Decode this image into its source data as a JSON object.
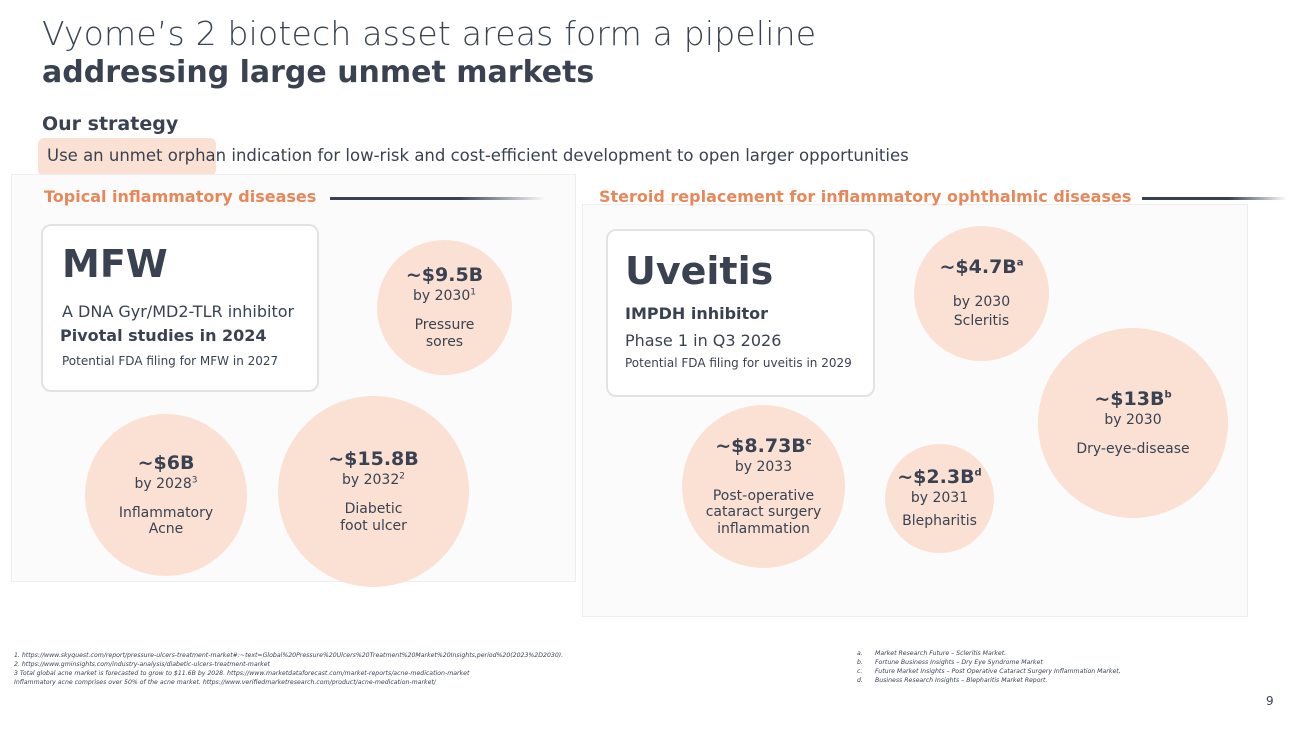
{
  "title": {
    "line1": "Vyome’s 2 biotech asset areas form a pipeline",
    "line2": "addressing large unmet markets"
  },
  "strategy": {
    "heading": "Our strategy",
    "text": "Use an unmet orphan indication for low-risk and cost-efficient development to open larger opportunities"
  },
  "left_section": {
    "heading": "Topical inflammatory diseases",
    "card": {
      "title": "MFW",
      "line1": "A DNA Gyr/MD2-TLR inhibitor",
      "line2": "Pivotal studies in 2024",
      "line3": "Potential FDA filing for MFW in 2027"
    },
    "bubbles": [
      {
        "value": "~$9.5B",
        "year": "by 2030",
        "ref": "1",
        "label1": "Pressure",
        "label2": "sores"
      },
      {
        "value": "~$6B",
        "year": "by 2028",
        "ref": "3",
        "label1": "Inflammatory",
        "label2": "Acne"
      },
      {
        "value": "~$15.8B",
        "year": "by 2032",
        "ref": "2",
        "label1": "Diabetic",
        "label2": "foot ulcer"
      }
    ]
  },
  "right_section": {
    "heading": "Steroid replacement for inflammatory ophthalmic diseases",
    "card": {
      "title": "Uveitis",
      "line1": "IMPDH inhibitor",
      "line2": "Phase 1 in Q3 2026",
      "line3": "Potential FDA filing for uveitis in 2029"
    },
    "bubbles": [
      {
        "value": "~$4.7B",
        "ref": "a",
        "year": "by 2030",
        "label1": "Scleritis",
        "label2": ""
      },
      {
        "value": "~$13B",
        "ref": "b",
        "year": "by 2030",
        "label1": "Dry-eye-disease",
        "label2": ""
      },
      {
        "value": "~$8.73B",
        "ref": "c",
        "year": "by 2033",
        "label1": "Post-operative",
        "label2": "cataract surgery",
        "label3": "inflammation"
      },
      {
        "value": "~$2.3B",
        "ref": "d",
        "year": "by 2031",
        "label1": "Blepharitis",
        "label2": ""
      }
    ]
  },
  "footnotes_left": [
    "1. https://www.skyquest.com/report/pressure-ulcers-treatment-market#:~text=Global%20Pressure%20Ulcers%20Treatment%20Market%20Insights,period%20(2023%2D2030).",
    "2. https://www.gminsights.com/industry-analysis/diabetic-ulcers-treatment-market",
    "3 Total global acne market is forecasted to grow to $11.6B by 2028. https://www.marketdataforecast.com/market-reports/acne-medication-market",
    "Inflammatory acne comprises over 50% of the acne market. https://www.verifiedmarketresearch.com/product/acne-medication-market/"
  ],
  "footnotes_right": [
    {
      "marker": "a.",
      "text": "Market Research Future – Scleritis Market."
    },
    {
      "marker": "b.",
      "text": "Fortune Business Insights – Dry Eye Syndrome Market"
    },
    {
      "marker": "c.",
      "text": "Future Market Insights – Post Operative Cataract Surgery Inflammation Market,"
    },
    {
      "marker": "d.",
      "text": "Business Research Insights – Blepharitis Market Report."
    }
  ],
  "page_number": "9",
  "colors": {
    "accent": "#e8875a",
    "bubble": "#fbe1d3",
    "text": "#3a4252"
  }
}
